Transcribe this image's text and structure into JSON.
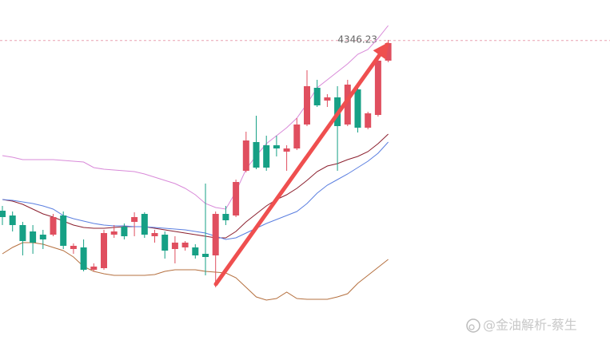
{
  "chart_data": {
    "type": "candlestick",
    "categories": [
      null,
      null,
      null,
      null,
      null,
      null,
      null,
      null,
      null,
      null,
      null,
      null,
      null,
      null,
      null,
      null,
      null,
      null,
      null,
      null,
      null,
      null,
      null,
      null,
      null,
      null,
      null,
      null,
      null,
      null,
      null,
      null,
      null,
      null,
      null,
      null,
      null,
      null,
      null
    ],
    "candles": {
      "open": [
        4133,
        4127,
        4115,
        4107,
        4103,
        4103,
        4127,
        4085,
        4087,
        4059,
        4061,
        4103,
        4113,
        4119,
        4129,
        4101,
        4103,
        4085,
        4087,
        4087,
        4079,
        4077,
        4129,
        4127,
        4183,
        4219,
        4215,
        4215,
        4207,
        4211,
        4241,
        4287,
        4271,
        4275,
        4241,
        4285,
        4237,
        4253,
        4321
      ],
      "high": [
        4139,
        4132,
        4119,
        4115,
        4109,
        4129,
        4132,
        4092,
        4097,
        4067,
        4109,
        4115,
        4117,
        4131,
        4131,
        4109,
        4107,
        4101,
        4095,
        4091,
        4167,
        4132,
        4139,
        4172,
        4232,
        4252,
        4227,
        4227,
        4215,
        4249,
        4309,
        4297,
        4279,
        4289,
        4297,
        4287,
        4257,
        4327,
        4347
      ],
      "low": [
        4115,
        4107,
        4077,
        4079,
        4085,
        4101,
        4085,
        4079,
        4057,
        4057,
        4059,
        4099,
        4097,
        4101,
        4099,
        4093,
        4073,
        4067,
        4083,
        4073,
        4052,
        4037,
        4115,
        4125,
        4181,
        4185,
        4183,
        4201,
        4183,
        4209,
        4239,
        4263,
        4263,
        4183,
        4239,
        4231,
        4235,
        4251,
        4319
      ],
      "close": [
        4125,
        4115,
        4095,
        4093,
        4097,
        4125,
        4089,
        4089,
        4059,
        4063,
        4105,
        4107,
        4101,
        4125,
        4103,
        4105,
        4083,
        4093,
        4093,
        4077,
        4075,
        4129,
        4121,
        4169,
        4221,
        4187,
        4187,
        4211,
        4211,
        4241,
        4289,
        4265,
        4275,
        4239,
        4291,
        4237,
        4255,
        4321,
        4343
      ]
    },
    "up_color": "#e04f5f",
    "down_color": "#16a085",
    "lines": [
      {
        "color": "#d98ad9",
        "values": [
          4202,
          4200,
          4197,
          4197,
          4197,
          4197,
          4196,
          4195,
          4194,
          4187,
          4185,
          4184,
          4183,
          4182,
          4179,
          4175,
          4171,
          4167,
          4161,
          4153,
          4142,
          4137,
          4135,
          4157,
          4185,
          4202,
          4217,
          4227,
          4237,
          4249,
          4267,
          4287,
          4297,
          4307,
          4317,
          4329,
          4335,
          4349,
          4365
        ]
      },
      {
        "color": "#8b1f2e",
        "values": [
          4147,
          4145,
          4141,
          4135,
          4129,
          4125,
          4120,
          4115,
          4112,
          4111,
          4111,
          4112,
          4113,
          4113,
          4113,
          4111,
          4109,
          4107,
          4105,
          4103,
          4101,
          4099,
          4099,
          4107,
          4119,
          4129,
          4139,
          4147,
          4153,
          4161,
          4171,
          4182,
          4189,
          4192,
          4197,
          4201,
          4207,
          4217,
          4229
        ]
      },
      {
        "color": "#5b7fe0",
        "values": [
          4147,
          4146,
          4144,
          4142,
          4139,
          4135,
          4127,
          4123,
          4120,
          4117,
          4115,
          4114,
          4114,
          4113,
          4113,
          4112,
          4111,
          4110,
          4109,
          4107,
          4105,
          4101,
          4097,
          4099,
          4105,
          4111,
          4117,
          4122,
          4127,
          4132,
          4142,
          4155,
          4165,
          4172,
          4179,
          4187,
          4195,
          4205,
          4219
        ]
      },
      {
        "color": "#b5703f",
        "values": [
          4079,
          4087,
          4093,
          4093,
          4091,
          4087,
          4083,
          4075,
          4063,
          4057,
          4054,
          4052,
          4052,
          4052,
          4052,
          4053,
          4057,
          4059,
          4059,
          4059,
          4057,
          4056,
          4055,
          4049,
          4037,
          4025,
          4021,
          4023,
          4031,
          4023,
          4022,
          4022,
          4022,
          4025,
          4029,
          4042,
          4052,
          4062,
          4072
        ]
      }
    ],
    "price_line": 4346.23,
    "price_line_color": "#e8a0b0",
    "ylim": [
      3971,
      4397
    ],
    "watermark": "@金油解析-蔡生"
  }
}
